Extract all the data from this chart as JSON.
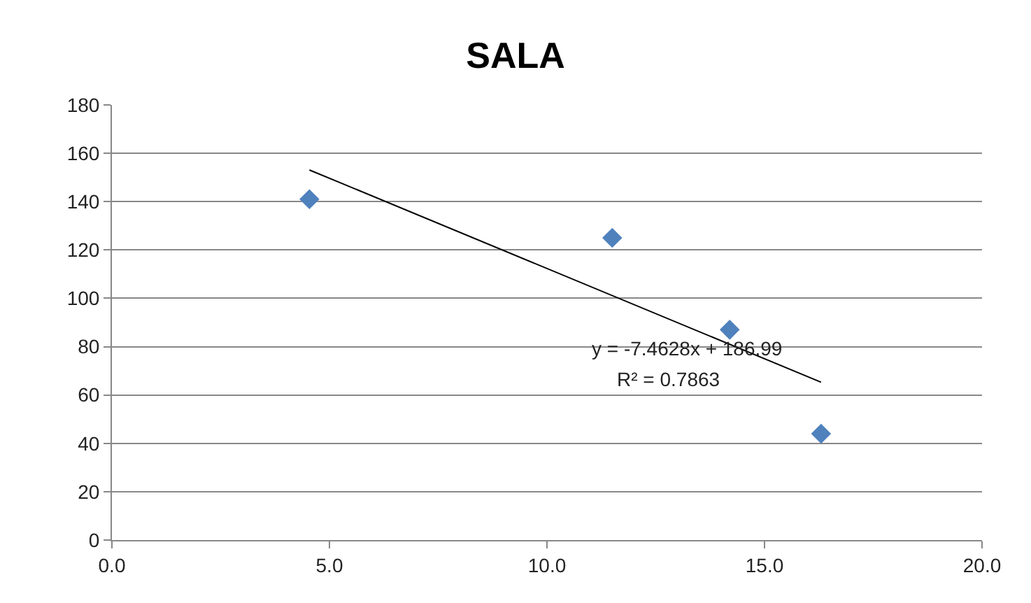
{
  "chart_data": {
    "type": "scatter",
    "title": "SALA",
    "grid": "y",
    "xlim": [
      0,
      20
    ],
    "xticks": [
      {
        "value": 0,
        "label": "0.0"
      },
      {
        "value": 5,
        "label": "5.0"
      },
      {
        "value": 10,
        "label": "10.0"
      },
      {
        "value": 15,
        "label": "15.0"
      },
      {
        "value": 20,
        "label": "20.0"
      }
    ],
    "ylim": [
      0,
      180
    ],
    "yticks": [
      0,
      20,
      40,
      60,
      80,
      100,
      120,
      140,
      160,
      180
    ],
    "series": [
      {
        "color": "#4f81bd",
        "marker": "diamond",
        "x": [
          4.54,
          11.5,
          14.2,
          16.3
        ],
        "values": [
          141,
          125,
          87,
          44
        ]
      },
      {
        "type": "line",
        "marker": "none",
        "color": "#000000",
        "x": [
          4.54,
          16.3
        ],
        "values": [
          153.1,
          65.3
        ]
      }
    ],
    "annotations": [
      "y = -7.4628x + 186.99",
      "R² = 0.7863"
    ]
  }
}
